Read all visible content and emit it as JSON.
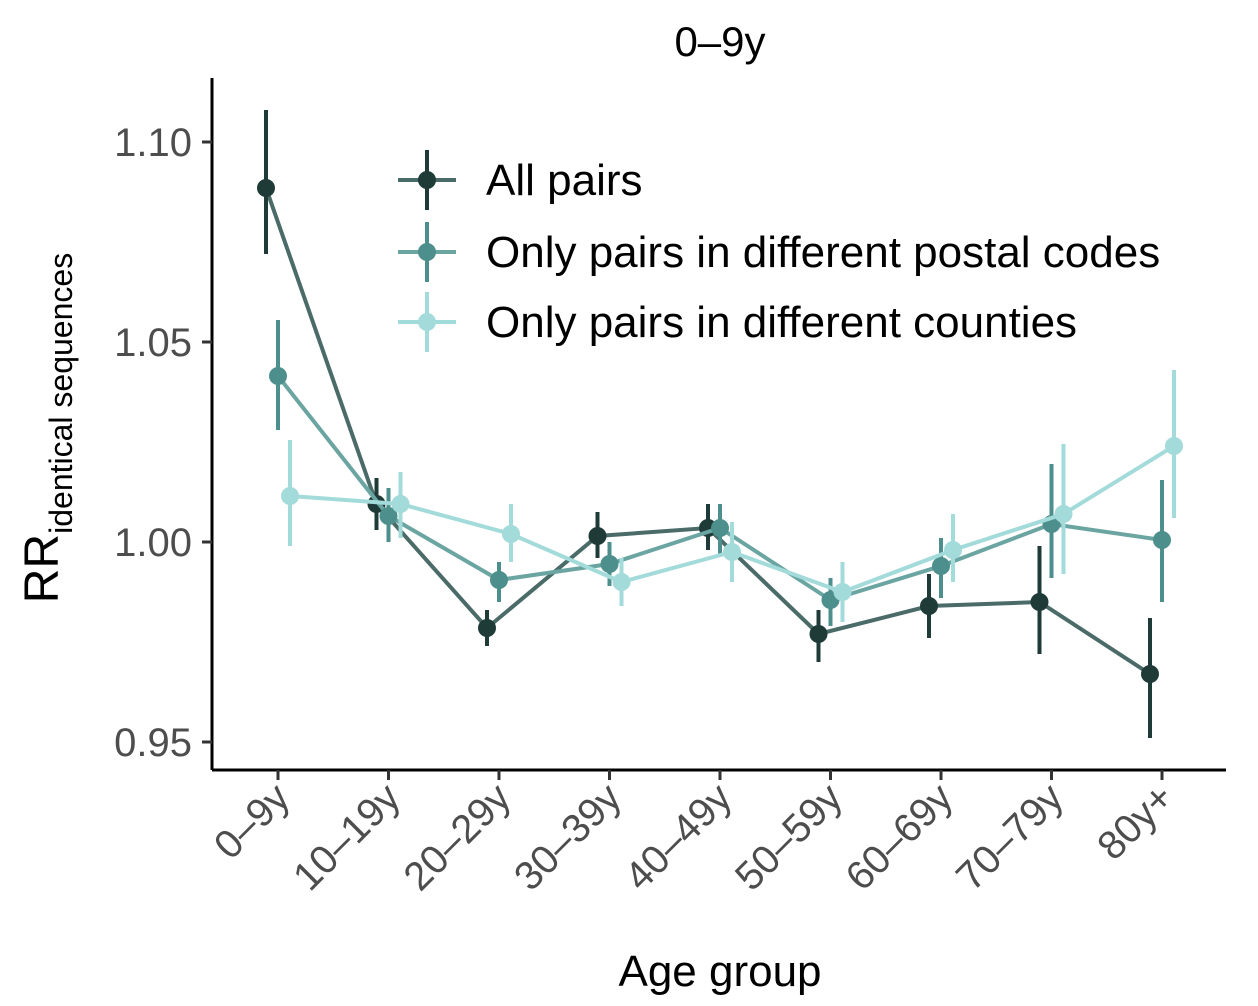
{
  "chart_data": {
    "type": "line",
    "title": "0–9y",
    "xlabel": "Age group",
    "ylabel_main": "RR",
    "ylabel_sub": "identical sequences",
    "categories": [
      "0–9y",
      "10–19y",
      "20–29y",
      "30–39y",
      "40–49y",
      "50–59y",
      "60–69y",
      "70–79y",
      "80y+"
    ],
    "yticks": [
      "0.95",
      "1.00",
      "1.05",
      "1.10"
    ],
    "ytick_values": [
      0.95,
      1.0,
      1.05,
      1.1
    ],
    "ylim": [
      0.943,
      1.116
    ],
    "legend_position": "top-right",
    "grid": false,
    "series": [
      {
        "name": "All pairs",
        "color": "#1f3b38",
        "line_color": "#4a6b68",
        "values": [
          1.0885,
          1.0095,
          0.9785,
          1.0015,
          1.0035,
          0.977,
          0.984,
          0.985,
          0.967
        ],
        "lower": [
          1.072,
          1.003,
          0.974,
          0.996,
          0.998,
          0.97,
          0.976,
          0.972,
          0.951
        ],
        "upper": [
          1.108,
          1.016,
          0.983,
          1.0075,
          1.0095,
          0.983,
          0.992,
          0.999,
          0.981
        ]
      },
      {
        "name": "Only pairs in different postal codes",
        "color": "#4d8f8c",
        "line_color": "#6aa5a2",
        "values": [
          1.0415,
          1.0065,
          0.9905,
          0.9945,
          1.0035,
          0.9855,
          0.994,
          1.0045,
          1.0005
        ],
        "lower": [
          1.028,
          1.0,
          0.985,
          0.989,
          0.997,
          0.979,
          0.986,
          0.991,
          0.985
        ],
        "upper": [
          1.0555,
          1.0135,
          0.995,
          1.0,
          1.0095,
          0.991,
          1.001,
          1.0195,
          1.0155
        ]
      },
      {
        "name": "Only pairs in different counties",
        "color": "#a3dada",
        "line_color": "#a3dada",
        "values": [
          1.0115,
          1.0095,
          1.002,
          0.99,
          0.9975,
          0.9875,
          0.998,
          1.007,
          1.024
        ],
        "lower": [
          0.999,
          1.001,
          0.995,
          0.984,
          0.99,
          0.98,
          0.99,
          0.992,
          1.006
        ],
        "upper": [
          1.0255,
          1.0175,
          1.0095,
          0.996,
          1.005,
          0.995,
          1.007,
          1.0245,
          1.043
        ]
      }
    ]
  }
}
